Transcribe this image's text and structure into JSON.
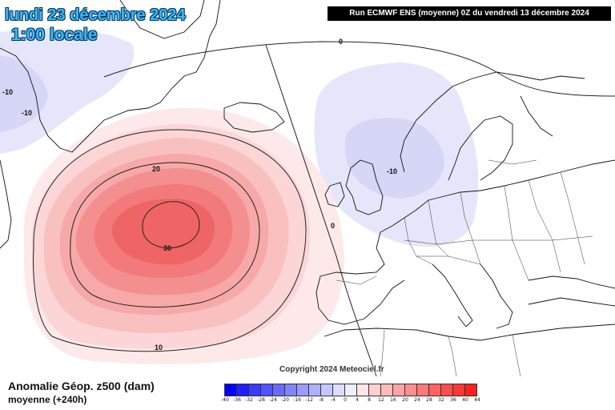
{
  "header": {
    "date": "lundi 23 décembre 2024",
    "time": "1:00 locale",
    "run": "Run ECMWF ENS (moyenne) 0Z du vendredi 13 décembre 2024"
  },
  "copyright": "Copyright 2024 Meteociel.fr",
  "footer": {
    "title": "Anomalie Géop. z500 (dam)",
    "subtitle": "moyenne   (+240h)"
  },
  "contour_labels": [
    "30",
    "20",
    "10",
    "0",
    "0",
    "-10",
    "-10",
    "-10",
    "0"
  ],
  "legend": {
    "labels": [
      "-40",
      "-36",
      "-32",
      "-28",
      "-24",
      "-20",
      "-16",
      "-12",
      "-8",
      "-4",
      "0",
      "4",
      "8",
      "12",
      "16",
      "20",
      "24",
      "28",
      "32",
      "36",
      "40",
      "44"
    ],
    "colors": [
      "#0000ff",
      "#1e1eff",
      "#3a3aff",
      "#5252ff",
      "#6a6aff",
      "#8282ff",
      "#9a9aff",
      "#b0b0ff",
      "#c6c6ff",
      "#dcdcff",
      "#eeeeff",
      "#ffe6e6",
      "#ffd0d0",
      "#ffbaba",
      "#ffa4a4",
      "#ff8e8e",
      "#ff7878",
      "#ff6262",
      "#ff4c4c",
      "#ff3636",
      "#ff2020"
    ]
  }
}
